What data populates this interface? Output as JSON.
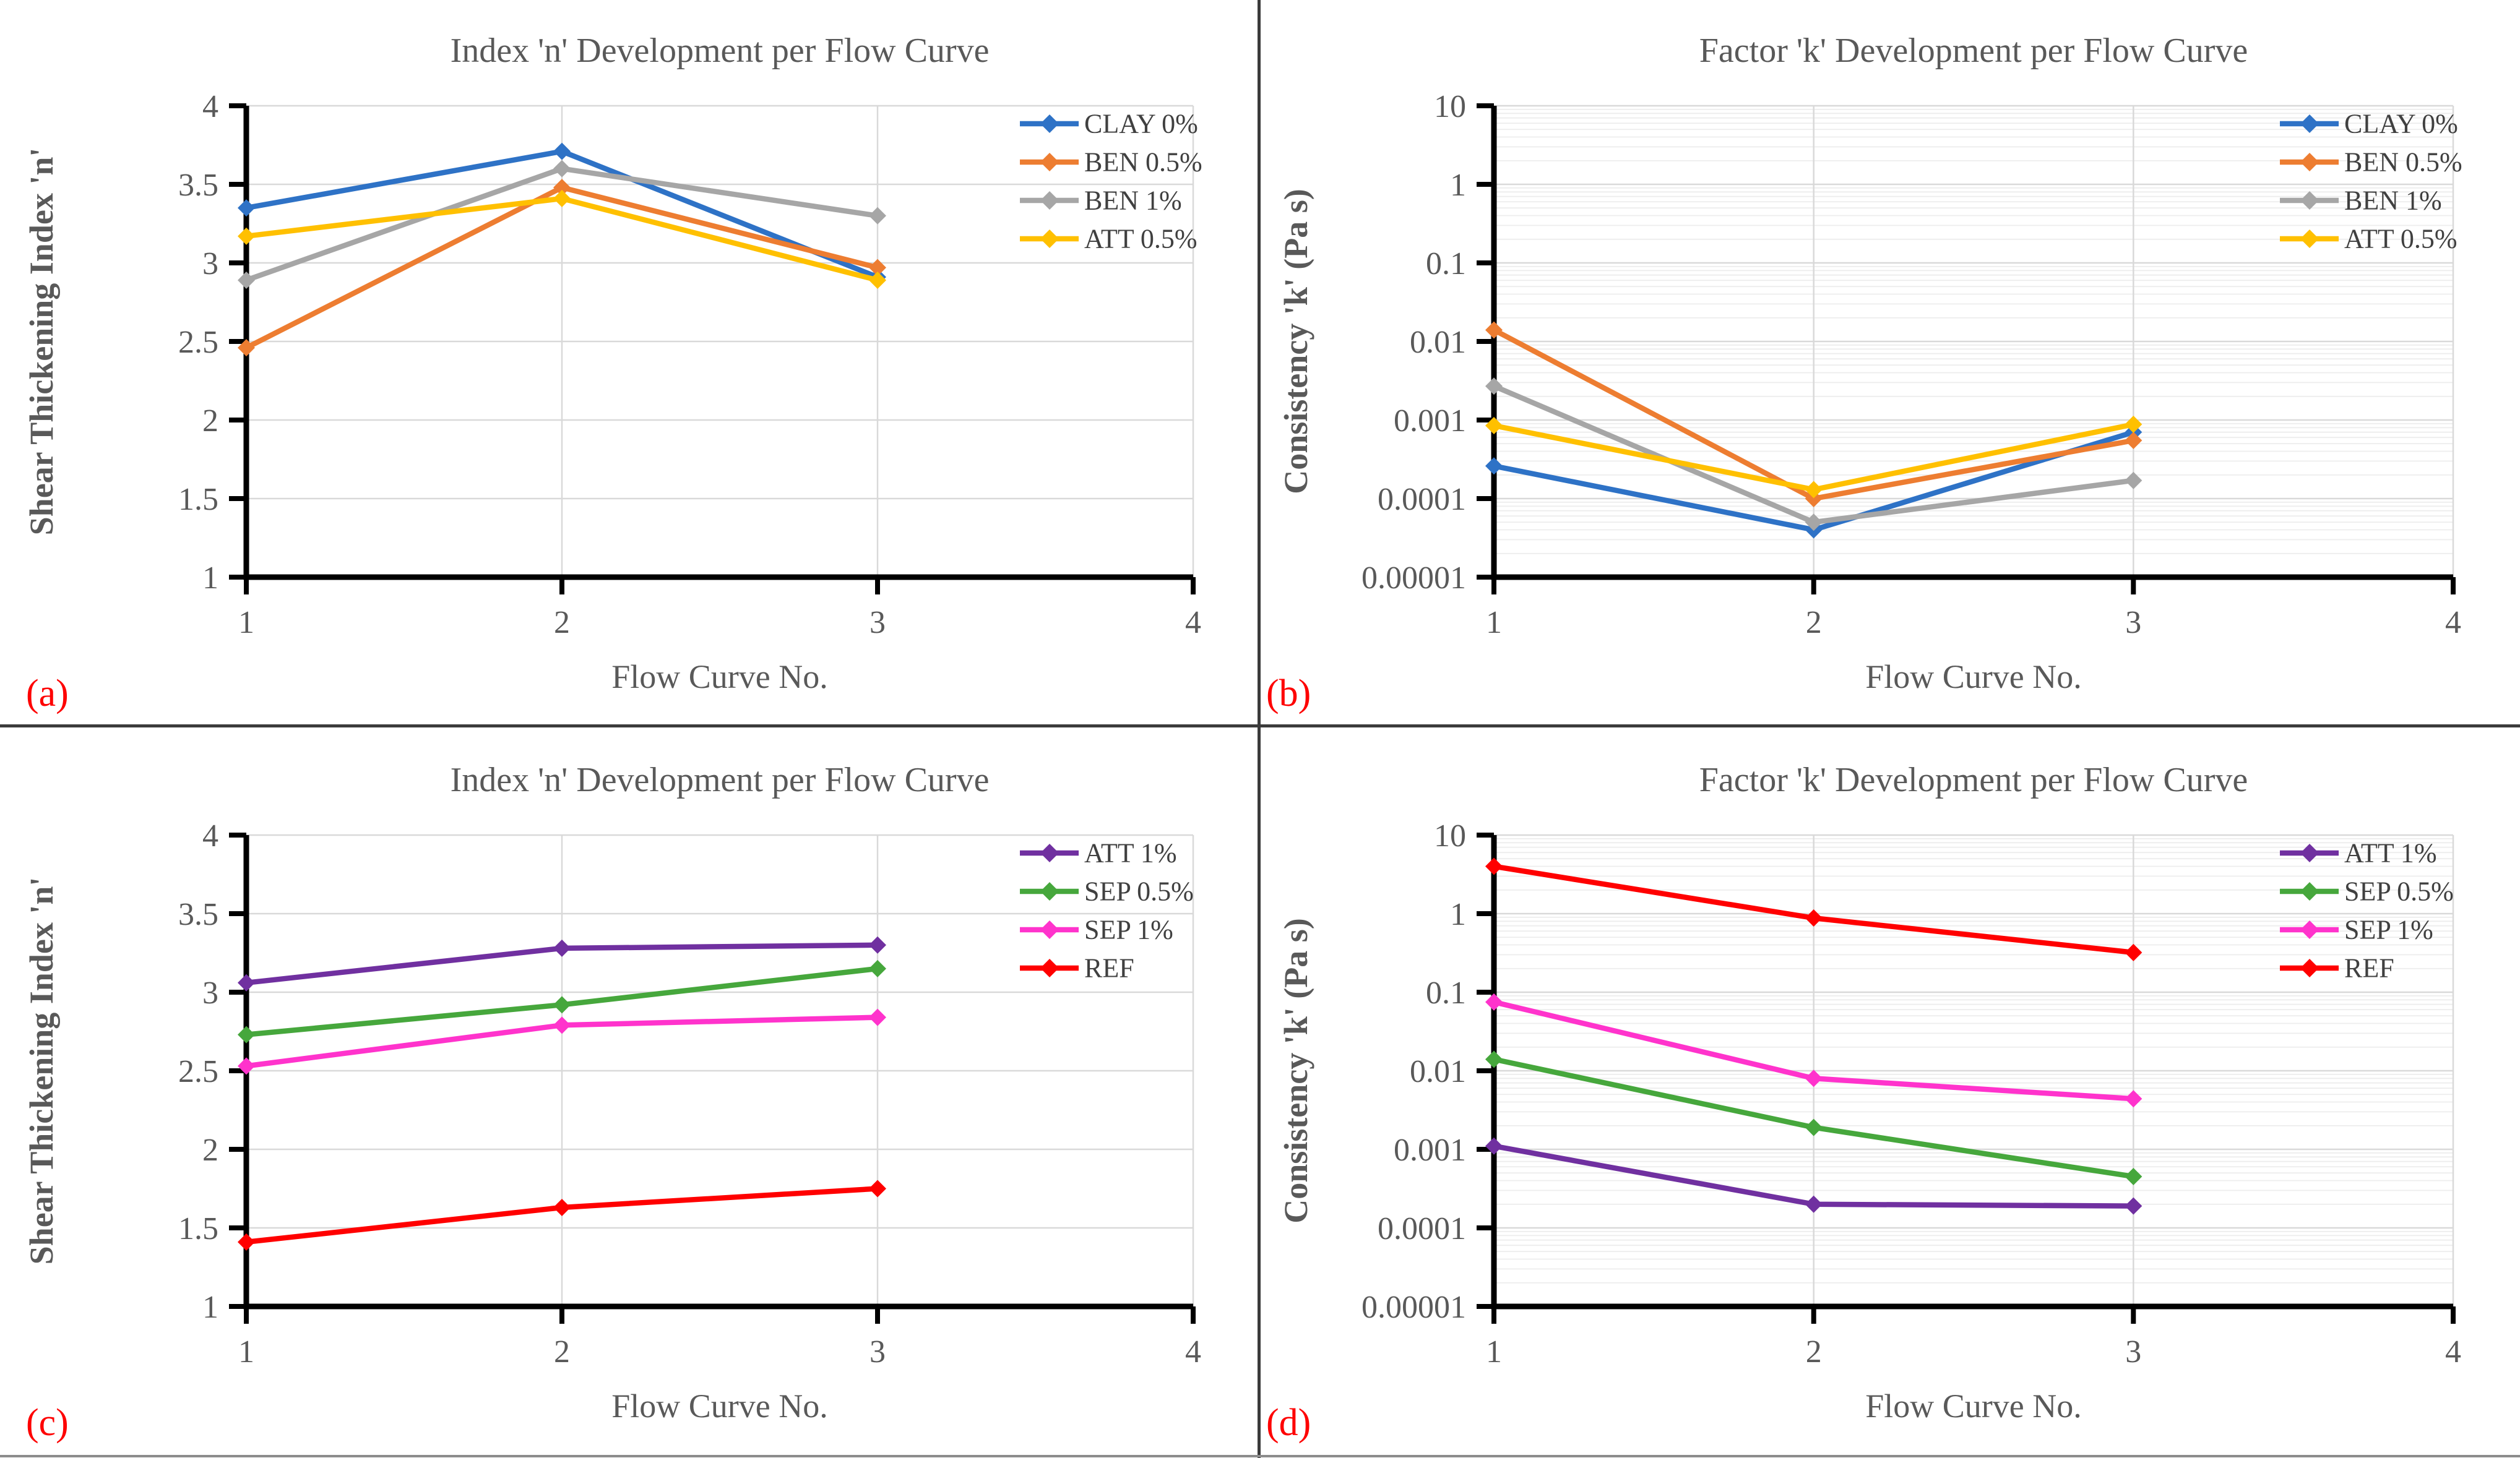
{
  "figure": {
    "background": "#FFFFFF",
    "divider_color": "#3B3B3B",
    "bottom_rule_color": "#8C8C8C",
    "panel_label_color": "#FE0000",
    "text_color": "#595959",
    "legend_text_color": "#404040",
    "grid_major_color": "#D9D9D9",
    "grid_minor_color": "#EDEDED",
    "axis_color": "#000000"
  },
  "chart_data": [
    {
      "panel_label": "(a)",
      "type": "line",
      "title": "Index 'n' Development per Flow Curve",
      "x_label": "Flow Curve No.",
      "y_label": "Shear Thickening Index 'n'",
      "y_scale": "linear",
      "y_min": 1,
      "y_max": 4,
      "x_min": 1,
      "x_max": 4,
      "x_tick_labels": [
        "1",
        "2",
        "3",
        "4"
      ],
      "x_tick_values": [
        1,
        2,
        3,
        4
      ],
      "y_tick_labels": [
        "4",
        "3.5",
        "3",
        "2.5",
        "2",
        "1.5",
        "1"
      ],
      "y_tick_values": [
        4,
        3.5,
        3,
        2.5,
        2,
        1.5,
        1
      ],
      "grid": true,
      "legend_position": "top-right-inside",
      "x": [
        1,
        2,
        3
      ],
      "series": [
        {
          "name": "CLAY 0%",
          "color": "#2E72C6",
          "values": [
            3.35,
            3.71,
            2.91
          ]
        },
        {
          "name": "BEN 0.5%",
          "color": "#ED7D31",
          "values": [
            2.46,
            3.48,
            2.97
          ]
        },
        {
          "name": "BEN 1%",
          "color": "#A6A6A6",
          "values": [
            2.89,
            3.6,
            3.3
          ]
        },
        {
          "name": "ATT 0.5%",
          "color": "#FFC000",
          "values": [
            3.17,
            3.41,
            2.89
          ]
        }
      ]
    },
    {
      "panel_label": "(b)",
      "type": "line",
      "title": "Factor 'k' Development per Flow Curve",
      "x_label": "Flow Curve No.",
      "y_label": "Consistency 'k' (Pa s)",
      "y_scale": "log",
      "y_min": 1e-05,
      "y_max": 10,
      "x_min": 1,
      "x_max": 4,
      "x_tick_labels": [
        "1",
        "2",
        "3",
        "4"
      ],
      "x_tick_values": [
        1,
        2,
        3,
        4
      ],
      "y_tick_labels": [
        "10",
        "1",
        "0.1",
        "0.01",
        "0.001",
        "0.0001",
        "0.00001"
      ],
      "y_tick_values": [
        10,
        1,
        0.1,
        0.01,
        0.001,
        0.0001,
        1e-05
      ],
      "grid": true,
      "legend_position": "top-right-inside",
      "x": [
        1,
        2,
        3
      ],
      "series": [
        {
          "name": "CLAY 0%",
          "color": "#2E72C6",
          "values": [
            0.00026,
            4e-05,
            0.0007
          ]
        },
        {
          "name": "BEN 0.5%",
          "color": "#ED7D31",
          "values": [
            0.014,
            0.0001,
            0.00055
          ]
        },
        {
          "name": "BEN 1%",
          "color": "#A6A6A6",
          "values": [
            0.0027,
            5e-05,
            0.00017
          ]
        },
        {
          "name": "ATT 0.5%",
          "color": "#FFC000",
          "values": [
            0.00085,
            0.00013,
            0.00088
          ]
        }
      ]
    },
    {
      "panel_label": "(c)",
      "type": "line",
      "title": "Index 'n' Development per Flow Curve",
      "x_label": "Flow Curve No.",
      "y_label": "Shear Thickening Index 'n'",
      "y_scale": "linear",
      "y_min": 1,
      "y_max": 4,
      "x_min": 1,
      "x_max": 4,
      "x_tick_labels": [
        "1",
        "2",
        "3",
        "4"
      ],
      "x_tick_values": [
        1,
        2,
        3,
        4
      ],
      "y_tick_labels": [
        "4",
        "3.5",
        "3",
        "2.5",
        "2",
        "1.5",
        "1"
      ],
      "y_tick_values": [
        4,
        3.5,
        3,
        2.5,
        2,
        1.5,
        1
      ],
      "grid": true,
      "legend_position": "top-right-inside",
      "x": [
        1,
        2,
        3
      ],
      "series": [
        {
          "name": "ATT 1%",
          "color": "#7030A0",
          "values": [
            3.06,
            3.28,
            3.3
          ]
        },
        {
          "name": "SEP 0.5%",
          "color": "#46A73C",
          "values": [
            2.73,
            2.92,
            3.15
          ]
        },
        {
          "name": "SEP 1%",
          "color": "#FF33CC",
          "values": [
            2.53,
            2.79,
            2.84
          ]
        },
        {
          "name": "REF",
          "color": "#FF0000",
          "values": [
            1.41,
            1.63,
            1.75
          ]
        }
      ]
    },
    {
      "panel_label": "(d)",
      "type": "line",
      "title": "Factor 'k' Development per Flow Curve",
      "x_label": "Flow Curve No.",
      "y_label": "Consistency 'k' (Pa s)",
      "y_scale": "log",
      "y_min": 1e-05,
      "y_max": 10,
      "x_min": 1,
      "x_max": 4,
      "x_tick_labels": [
        "1",
        "2",
        "3",
        "4"
      ],
      "x_tick_values": [
        1,
        2,
        3,
        4
      ],
      "y_tick_labels": [
        "10",
        "1",
        "0.1",
        "0.01",
        "0.001",
        "0.0001",
        "0.00001"
      ],
      "y_tick_values": [
        10,
        1,
        0.1,
        0.01,
        0.001,
        0.0001,
        1e-05
      ],
      "grid": true,
      "legend_position": "top-right-inside",
      "x": [
        1,
        2,
        3
      ],
      "series": [
        {
          "name": "ATT 1%",
          "color": "#7030A0",
          "values": [
            0.0011,
            0.0002,
            0.00019
          ]
        },
        {
          "name": "SEP 0.5%",
          "color": "#46A73C",
          "values": [
            0.014,
            0.0019,
            0.00045
          ]
        },
        {
          "name": "SEP 1%",
          "color": "#FF33CC",
          "values": [
            0.075,
            0.008,
            0.0044
          ]
        },
        {
          "name": "REF",
          "color": "#FF0000",
          "values": [
            4.0,
            0.88,
            0.32
          ]
        }
      ]
    }
  ]
}
